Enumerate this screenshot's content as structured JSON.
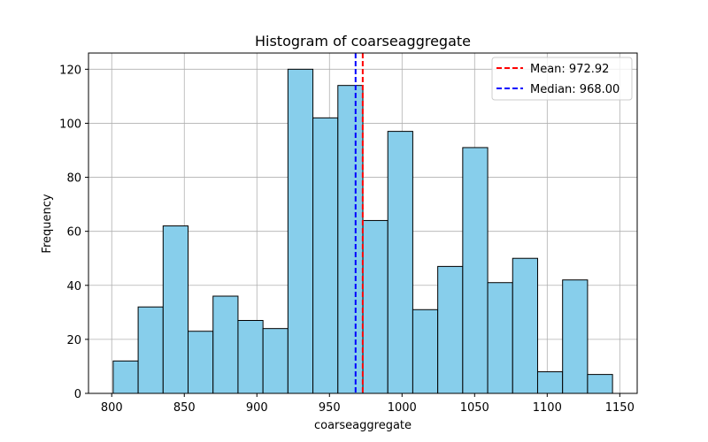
{
  "chart_data": {
    "type": "bar",
    "title": "Histogram of coarseaggregate",
    "xlabel": "coarseaggregate",
    "ylabel": "Frequency",
    "bin_edges": [
      801.0,
      818.2,
      835.4,
      852.6,
      869.8,
      887.0,
      904.2,
      921.4,
      938.6,
      955.8,
      973.0,
      990.2,
      1007.4,
      1024.6,
      1041.8,
      1059.0,
      1076.2,
      1093.4,
      1110.6,
      1127.8,
      1145.0
    ],
    "values": [
      12,
      32,
      62,
      23,
      36,
      27,
      24,
      120,
      102,
      114,
      64,
      97,
      31,
      47,
      91,
      41,
      50,
      8,
      42,
      7
    ],
    "xlim": [
      784,
      1162
    ],
    "ylim": [
      0,
      126
    ],
    "xticks": [
      800,
      850,
      900,
      950,
      1000,
      1050,
      1100,
      1150
    ],
    "yticks": [
      0,
      20,
      40,
      60,
      80,
      100,
      120
    ],
    "grid": true,
    "bar_color": "#87ceeb",
    "edge_color": "#000000",
    "lines": [
      {
        "label": "Mean: 972.92",
        "x": 972.92,
        "color": "#ff0000",
        "style": "dashed"
      },
      {
        "label": "Median: 968.00",
        "x": 968.0,
        "color": "#0000ff",
        "style": "dashed"
      }
    ],
    "legend_position": "upper right"
  }
}
